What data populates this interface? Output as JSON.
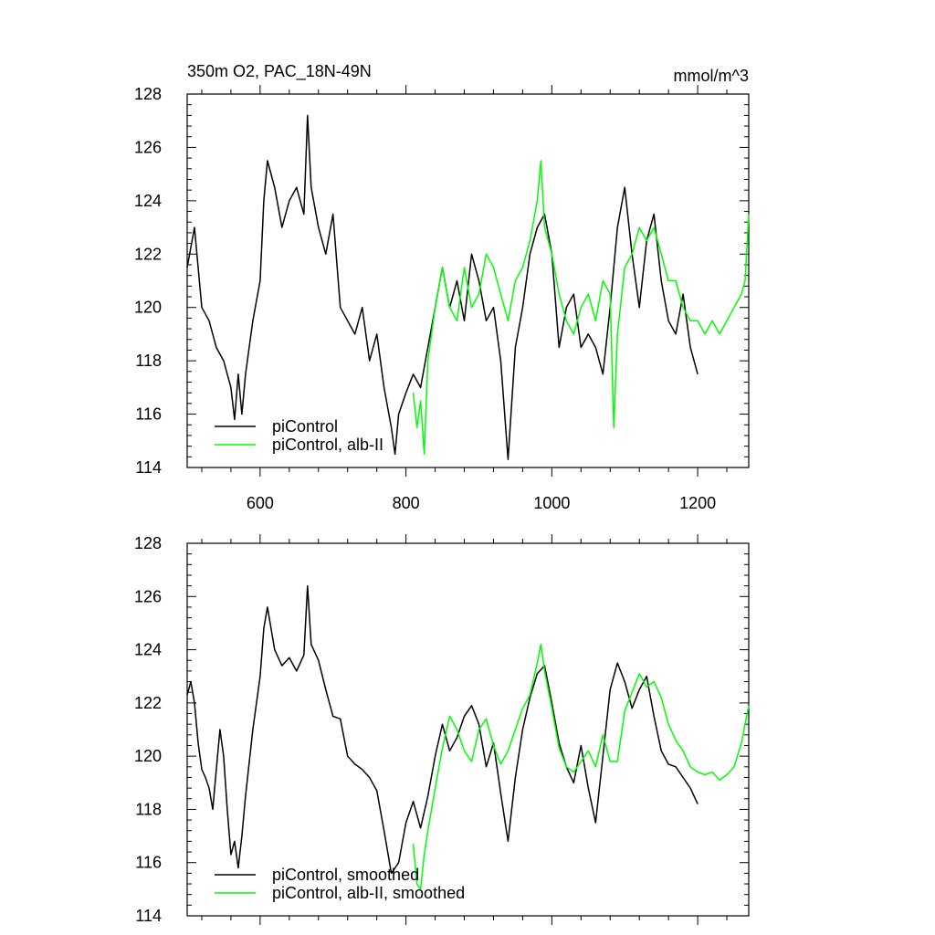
{
  "chart_data": [
    {
      "type": "line",
      "title": "350m O2, PAC_18N-49N",
      "units": "mmol/m^3",
      "xlim": [
        500,
        1270
      ],
      "ylim": [
        114,
        128
      ],
      "xticks": [
        600,
        800,
        1000,
        1200
      ],
      "xtick_labels": [
        "600",
        "800",
        "1000",
        "1200"
      ],
      "yticks": [
        114,
        116,
        118,
        120,
        122,
        124,
        126,
        128
      ],
      "ytick_labels": [
        "114",
        "116",
        "118",
        "120",
        "122",
        "124",
        "126",
        "128"
      ],
      "show_xtick_labels": true,
      "legend_position": "bottom-left",
      "series": [
        {
          "name": "piControl",
          "color": "#000000",
          "x": [
            500,
            510,
            520,
            530,
            540,
            550,
            560,
            565,
            570,
            575,
            580,
            590,
            600,
            605,
            610,
            620,
            630,
            640,
            650,
            660,
            665,
            670,
            680,
            690,
            700,
            710,
            720,
            730,
            740,
            750,
            760,
            770,
            780,
            785,
            790,
            800,
            810,
            820,
            830,
            840,
            850,
            860,
            870,
            880,
            890,
            900,
            910,
            920,
            930,
            940,
            950,
            960,
            970,
            980,
            990,
            1000,
            1010,
            1020,
            1030,
            1040,
            1050,
            1060,
            1070,
            1080,
            1090,
            1100,
            1110,
            1120,
            1130,
            1140,
            1150,
            1160,
            1170,
            1180,
            1190,
            1200
          ],
          "y": [
            121.5,
            123,
            120,
            119.5,
            118.5,
            118,
            117,
            115.8,
            117.5,
            116,
            117.5,
            119.5,
            121,
            124,
            125.5,
            124.5,
            123,
            124,
            124.5,
            123.5,
            127.2,
            124.5,
            123,
            122,
            123.5,
            120,
            119.5,
            119,
            120,
            118,
            119,
            117,
            115.5,
            114.5,
            116,
            116.8,
            117.5,
            117,
            118.5,
            120,
            121.5,
            120,
            121,
            119.5,
            122,
            121,
            119.5,
            120,
            118,
            114.3,
            118.5,
            120,
            122,
            123,
            123.5,
            122,
            118.5,
            120,
            120.5,
            118.5,
            119,
            118.5,
            117.5,
            120,
            123,
            124.5,
            122,
            120,
            122.5,
            123.5,
            121,
            119.5,
            119,
            120.5,
            118.5,
            117.5
          ]
        },
        {
          "name": "piControl, alb-II",
          "color": "#00ff00",
          "x": [
            810,
            815,
            820,
            825,
            830,
            840,
            850,
            860,
            870,
            880,
            890,
            900,
            910,
            920,
            930,
            940,
            950,
            960,
            970,
            980,
            985,
            990,
            1000,
            1010,
            1020,
            1030,
            1040,
            1050,
            1060,
            1070,
            1080,
            1085,
            1090,
            1100,
            1110,
            1120,
            1130,
            1140,
            1150,
            1160,
            1170,
            1180,
            1190,
            1200,
            1210,
            1220,
            1230,
            1240,
            1250,
            1260,
            1265,
            1270
          ],
          "y": [
            116.8,
            115.5,
            116.5,
            114.5,
            118,
            120,
            121.5,
            120,
            119.5,
            121.5,
            120,
            120.5,
            122,
            121.5,
            120.5,
            119.5,
            121,
            121.5,
            122.5,
            124,
            125.5,
            123,
            122,
            120.5,
            119.5,
            119,
            120,
            120.5,
            119.5,
            121,
            120.5,
            115.5,
            119,
            121.5,
            122,
            123,
            122.5,
            123,
            122,
            121,
            121,
            120,
            119.5,
            119.5,
            119,
            119.5,
            119,
            119.5,
            120,
            120.5,
            121,
            123.5
          ]
        }
      ]
    },
    {
      "type": "line",
      "xlim": [
        500,
        1270
      ],
      "ylim": [
        114,
        128
      ],
      "xticks": [
        600,
        800,
        1000,
        1200
      ],
      "yticks": [
        114,
        116,
        118,
        120,
        122,
        124,
        126,
        128
      ],
      "ytick_labels": [
        "114",
        "116",
        "118",
        "120",
        "122",
        "124",
        "126",
        "128"
      ],
      "show_xtick_labels": false,
      "legend_position": "bottom-left",
      "series": [
        {
          "name": "piControl, smoothed",
          "color": "#000000",
          "x": [
            500,
            505,
            510,
            515,
            520,
            525,
            530,
            535,
            540,
            545,
            550,
            555,
            560,
            565,
            570,
            575,
            580,
            590,
            600,
            605,
            610,
            620,
            630,
            640,
            650,
            660,
            665,
            670,
            680,
            690,
            700,
            710,
            720,
            730,
            740,
            750,
            760,
            770,
            780,
            790,
            800,
            810,
            820,
            830,
            840,
            850,
            860,
            870,
            880,
            890,
            900,
            910,
            920,
            930,
            940,
            950,
            960,
            970,
            980,
            990,
            1000,
            1010,
            1020,
            1030,
            1040,
            1050,
            1060,
            1070,
            1080,
            1090,
            1100,
            1110,
            1120,
            1130,
            1140,
            1150,
            1160,
            1170,
            1180,
            1190,
            1200
          ],
          "y": [
            122.3,
            122.8,
            122,
            120.5,
            119.5,
            119.2,
            118.8,
            118,
            119.5,
            121,
            120,
            118,
            116.3,
            116.8,
            115.8,
            117,
            118.5,
            121,
            123,
            124.8,
            125.6,
            124,
            123.4,
            123.7,
            123.2,
            123.8,
            126.4,
            124.2,
            123.6,
            122.5,
            121.5,
            121.4,
            120,
            119.7,
            119.5,
            119.2,
            118.7,
            117.2,
            115.6,
            116,
            117.5,
            118.3,
            117.3,
            118.5,
            120,
            121.2,
            120.2,
            120.7,
            121.5,
            121.9,
            121.2,
            119.6,
            120.5,
            118.6,
            116.8,
            119.2,
            121,
            122.2,
            123.1,
            123.4,
            122,
            120.5,
            119.6,
            119,
            120.4,
            118.8,
            117.5,
            120,
            122.5,
            123.5,
            122.8,
            121.8,
            122.5,
            123,
            121.5,
            120.2,
            119.7,
            119.6,
            119.2,
            118.8,
            118.2
          ]
        },
        {
          "name": "piControl, alb-II, smoothed",
          "color": "#00ff00",
          "x": [
            810,
            815,
            820,
            825,
            830,
            835,
            840,
            850,
            860,
            870,
            880,
            890,
            900,
            910,
            920,
            930,
            940,
            950,
            960,
            970,
            980,
            985,
            990,
            1000,
            1010,
            1020,
            1030,
            1040,
            1050,
            1060,
            1070,
            1080,
            1090,
            1100,
            1110,
            1120,
            1130,
            1140,
            1150,
            1160,
            1170,
            1180,
            1190,
            1200,
            1210,
            1220,
            1230,
            1240,
            1250,
            1260,
            1270
          ],
          "y": [
            116.7,
            115.2,
            115,
            116.3,
            117.2,
            118,
            118.8,
            120.3,
            121.5,
            121,
            120.2,
            119.8,
            121,
            121.4,
            120.4,
            119.7,
            120.2,
            121,
            121.8,
            122.3,
            123.5,
            124.2,
            123.2,
            121.8,
            120.3,
            119.6,
            119.4,
            119.8,
            120.2,
            119.6,
            120.8,
            119.8,
            119.8,
            121.7,
            122.4,
            123.1,
            122.6,
            122.8,
            122.2,
            121.2,
            120.6,
            120.2,
            119.6,
            119.4,
            119.3,
            119.4,
            119.1,
            119.3,
            119.6,
            120.5,
            121.9
          ]
        }
      ]
    }
  ]
}
